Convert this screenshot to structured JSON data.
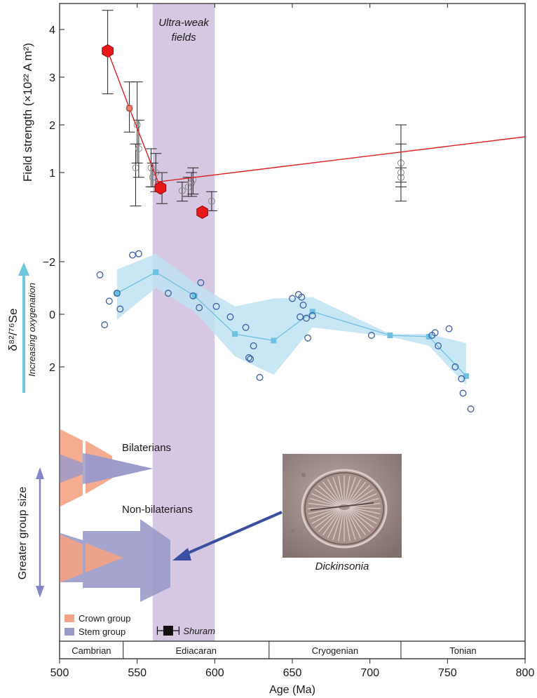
{
  "chart_data": {
    "type": "multi-panel",
    "xlabel": "Age (Ma)",
    "xlim": [
      500,
      800
    ],
    "xticks": [
      "500",
      "550",
      "600",
      "650",
      "700",
      "750",
      "800"
    ],
    "periods": [
      {
        "name": "Cambrian",
        "start": 500,
        "end": 541
      },
      {
        "name": "Ediacaran",
        "start": 541,
        "end": 635
      },
      {
        "name": "Cryogenian",
        "start": 635,
        "end": 720
      },
      {
        "name": "Tonian",
        "start": 720,
        "end": 800
      }
    ],
    "ultra_weak": {
      "label_line1": "Ultra-weak",
      "label_line2": "fields",
      "start": 560,
      "end": 600,
      "color": "#d6c8e3"
    },
    "field_panel": {
      "ylabel": "Field strength (×10²² A m²)",
      "ylim": [
        0,
        4.5
      ],
      "yticks": [
        "1",
        "2",
        "3",
        "4"
      ],
      "ytick_values": [
        1,
        2,
        3,
        4
      ],
      "highlight_points": [
        {
          "x": 531,
          "y": 3.55
        },
        {
          "x": 565,
          "y": 0.68
        },
        {
          "x": 592,
          "y": 0.17
        }
      ],
      "trend_line": [
        [
          531,
          3.55
        ],
        [
          545,
          2.35
        ],
        [
          565,
          0.68
        ]
      ],
      "trend_mid_marker": {
        "x": 545,
        "y": 2.35
      },
      "long_line": [
        [
          562,
          0.8
        ],
        [
          800,
          1.75
        ]
      ],
      "data_points": [
        {
          "x": 531,
          "y": 3.55,
          "lo": 2.65,
          "hi": 4.4
        },
        {
          "x": 545,
          "y": 2.35,
          "lo": 1.85,
          "hi": 2.9
        },
        {
          "x": 550,
          "y": 2.0,
          "lo": 1.2,
          "hi": 2.9
        },
        {
          "x": 549,
          "y": 1.1,
          "lo": 0.3,
          "hi": 1.6
        },
        {
          "x": 551,
          "y": 1.5,
          "lo": 0.9,
          "hi": 2.1
        },
        {
          "x": 559,
          "y": 1.1,
          "lo": 0.7,
          "hi": 1.5
        },
        {
          "x": 562,
          "y": 1.0,
          "lo": 0.6,
          "hi": 1.4
        },
        {
          "x": 560,
          "y": 0.9,
          "lo": 0.7,
          "hi": 1.2
        },
        {
          "x": 566,
          "y": 0.7,
          "lo": 0.35,
          "hi": 1.0
        },
        {
          "x": 579,
          "y": 0.62,
          "lo": 0.4,
          "hi": 0.8
        },
        {
          "x": 583,
          "y": 0.7,
          "lo": 0.5,
          "hi": 0.9
        },
        {
          "x": 585,
          "y": 0.78,
          "lo": 0.5,
          "hi": 1.0
        },
        {
          "x": 586,
          "y": 0.85,
          "lo": 0.55,
          "hi": 1.1
        },
        {
          "x": 598,
          "y": 0.4,
          "lo": 0.2,
          "hi": 0.6
        },
        {
          "x": 720,
          "y": 1.2,
          "lo": 0.4,
          "hi": 2.0
        },
        {
          "x": 720,
          "y": 1.0,
          "lo": 0.7,
          "hi": 1.6
        },
        {
          "x": 720,
          "y": 0.9,
          "lo": 0.8,
          "hi": 1.1
        }
      ]
    },
    "se_panel": {
      "ylabel": "δ⁸²/⁷⁶Se",
      "arrow_label": "Increasing oxygenation",
      "ylim_inverted": [
        -2.3,
        3.6
      ],
      "yticks": [
        "−2",
        "0",
        "2"
      ],
      "ytick_values": [
        -2,
        0,
        2
      ],
      "points": [
        [
          526,
          -1.5
        ],
        [
          529,
          0.4
        ],
        [
          532,
          -0.5
        ],
        [
          537,
          -0.8
        ],
        [
          539,
          -0.2
        ],
        [
          547,
          -2.25
        ],
        [
          551,
          -2.3
        ],
        [
          570,
          -0.8
        ],
        [
          586,
          -0.7
        ],
        [
          590,
          -0.25
        ],
        [
          591,
          -1.2
        ],
        [
          601,
          -0.3
        ],
        [
          610,
          0.1
        ],
        [
          620,
          0.5
        ],
        [
          622,
          1.65
        ],
        [
          623,
          1.7
        ],
        [
          625,
          1.2
        ],
        [
          629,
          2.4
        ],
        [
          650,
          -0.6
        ],
        [
          654,
          -0.75
        ],
        [
          655,
          0.1
        ],
        [
          656,
          -0.65
        ],
        [
          657,
          -0.35
        ],
        [
          659,
          0.15
        ],
        [
          660,
          0.9
        ],
        [
          663,
          0.05
        ],
        [
          701,
          0.8
        ],
        [
          740,
          0.8
        ],
        [
          742,
          0.7
        ],
        [
          744,
          1.2
        ],
        [
          751,
          0.55
        ],
        [
          755,
          2.0
        ],
        [
          759,
          2.45
        ],
        [
          760,
          3.0
        ],
        [
          765,
          3.6
        ]
      ],
      "mean_line": [
        [
          537,
          -0.8
        ],
        [
          562,
          -1.6
        ],
        [
          587,
          -0.7
        ],
        [
          613,
          0.75
        ],
        [
          638,
          1.0
        ],
        [
          663,
          -0.1
        ],
        [
          713,
          0.8
        ],
        [
          738,
          0.85
        ],
        [
          762,
          2.35
        ]
      ],
      "band_upper": [
        [
          537,
          -1.7
        ],
        [
          562,
          -2.3
        ],
        [
          587,
          -1.2
        ],
        [
          613,
          -0.3
        ],
        [
          638,
          -0.6
        ],
        [
          663,
          -0.65
        ],
        [
          713,
          0.75
        ],
        [
          738,
          0.75
        ],
        [
          762,
          1.1
        ]
      ],
      "band_lower": [
        [
          537,
          0.2
        ],
        [
          562,
          -1.0
        ],
        [
          587,
          -0.1
        ],
        [
          613,
          1.6
        ],
        [
          638,
          2.3
        ],
        [
          663,
          0.5
        ],
        [
          713,
          0.85
        ],
        [
          738,
          1.2
        ],
        [
          762,
          2.7
        ]
      ]
    },
    "group_panel": {
      "ylabel": "Greater group size",
      "bilaterians_label": "Bilaterians",
      "non_bilaterians_label": "Non-bilaterians",
      "fossil_label": "Dickinsonia",
      "legend": [
        {
          "label": "Crown group",
          "color": "#f4a385"
        },
        {
          "label": "Stem group",
          "color": "#9a9ac9"
        }
      ]
    },
    "shuram": {
      "label": "Shuram",
      "center": 570,
      "lo": 563,
      "hi": 577
    }
  }
}
